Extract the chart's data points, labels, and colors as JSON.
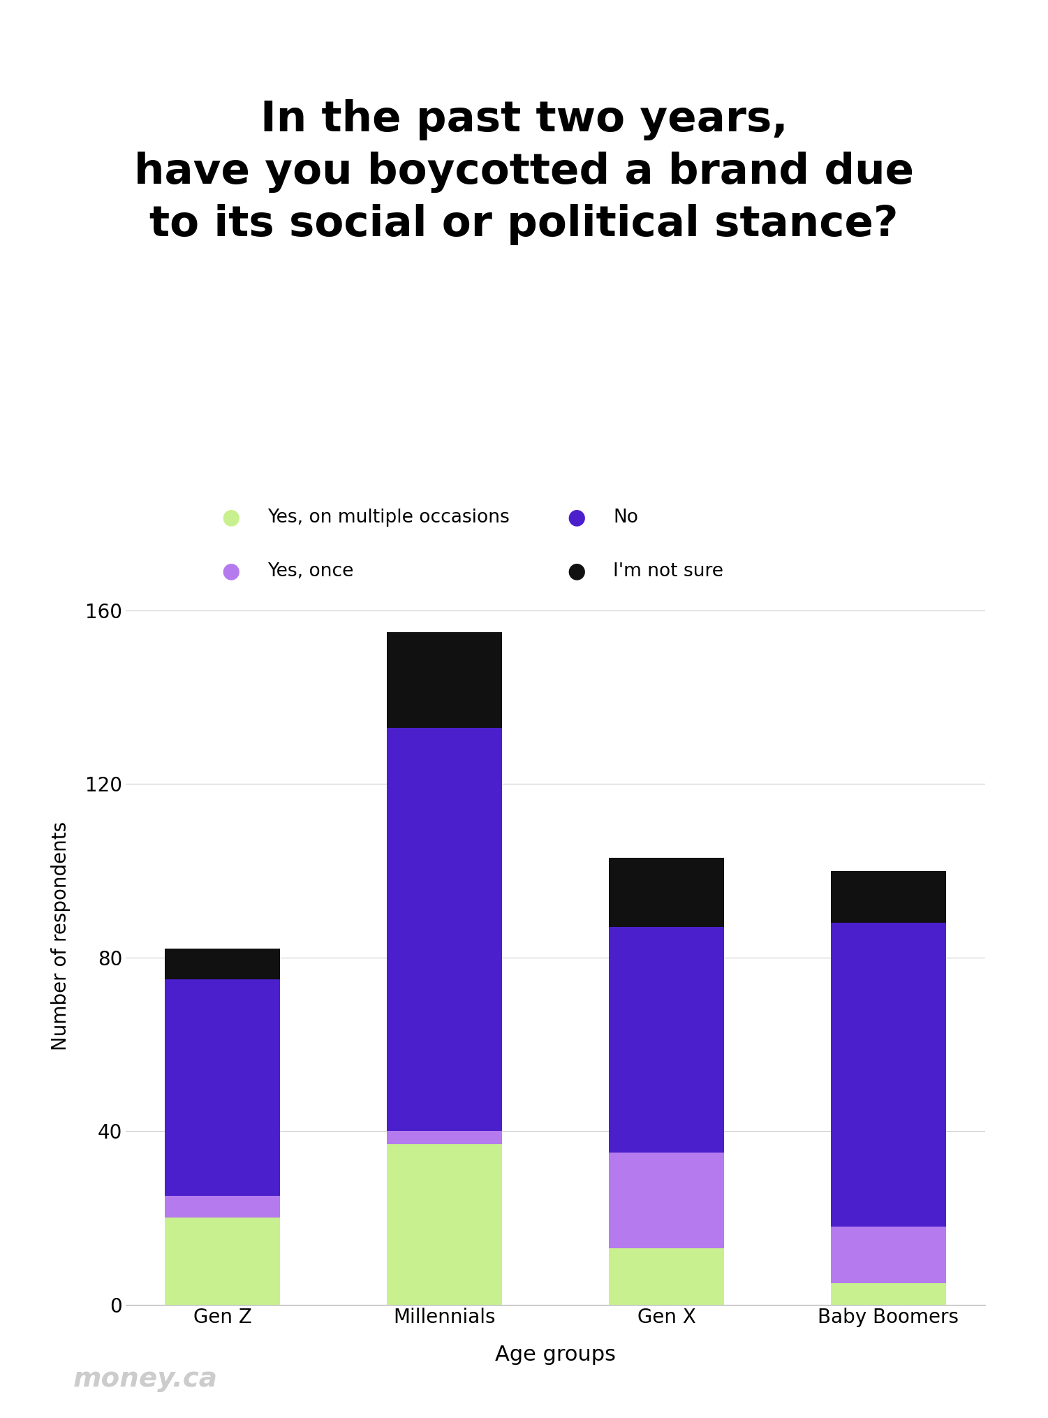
{
  "title": "In the past two years,\nhave you boycotted a brand due\nto its social or political stance?",
  "categories": [
    "Gen Z",
    "Millennials",
    "Gen X",
    "Baby Boomers"
  ],
  "series": {
    "Yes, on multiple occasions": [
      20,
      37,
      13,
      5
    ],
    "Yes, once": [
      5,
      3,
      22,
      13
    ],
    "No": [
      50,
      93,
      52,
      70
    ],
    "I'm not sure": [
      7,
      22,
      16,
      12
    ]
  },
  "colors": {
    "Yes, on multiple occasions": "#c8f08f",
    "Yes, once": "#b57bee",
    "No": "#4b20cc",
    "I'm not sure": "#111111"
  },
  "ylabel": "Number of respondents",
  "xlabel": "Age groups",
  "ylim": [
    0,
    170
  ],
  "yticks": [
    0,
    40,
    80,
    120,
    160
  ],
  "background_color": "#ffffff",
  "watermark": "money.ca",
  "bar_width": 0.52,
  "legend_order": [
    "Yes, on multiple occasions",
    "No",
    "Yes, once",
    "I'm not sure"
  ]
}
